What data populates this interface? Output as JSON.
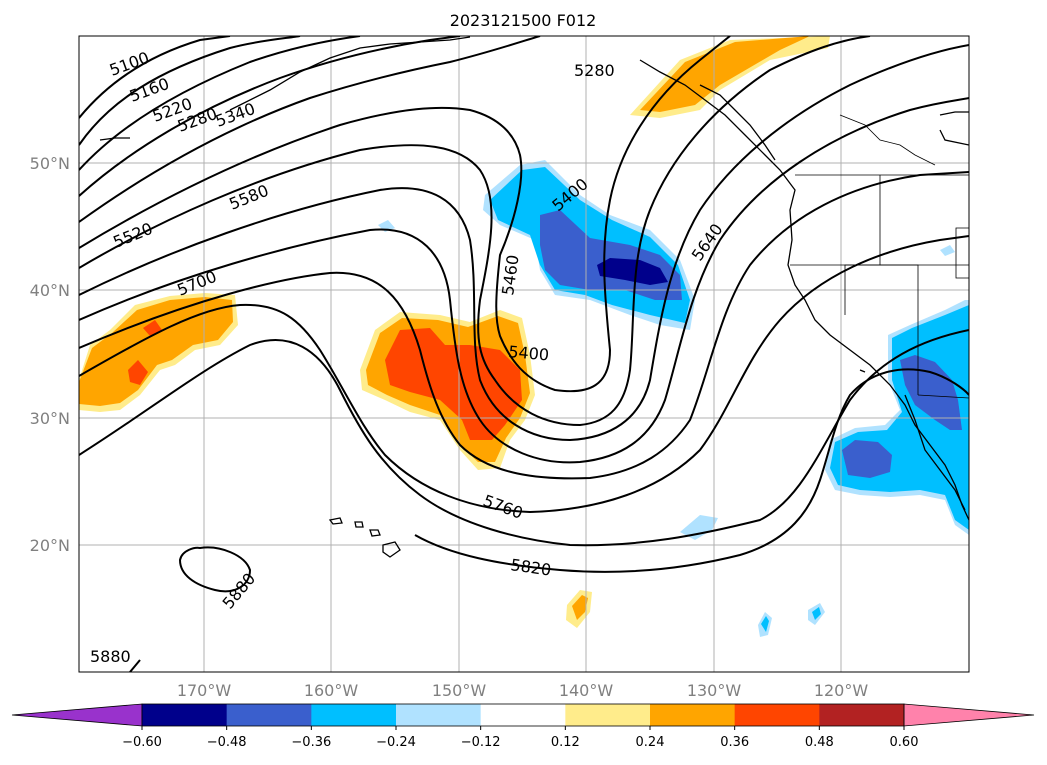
{
  "title": "2023121500 F012",
  "lat_labels": [
    "50°N",
    "40°N",
    "30°N",
    "20°N"
  ],
  "lon_labels": [
    "170°W",
    "160°W",
    "150°W",
    "140°W",
    "130°W",
    "120°W"
  ],
  "contour_labels": [
    "5100",
    "5160",
    "5220",
    "5280",
    "5340",
    "5580",
    "5520",
    "5700",
    "5400",
    "5460",
    "5400",
    "5640",
    "5280",
    "5760",
    "5820",
    "5880",
    "5880"
  ],
  "colorbar": {
    "ticks": [
      "−0.60",
      "−0.48",
      "−0.36",
      "−0.24",
      "−0.12",
      "0.12",
      "0.24",
      "0.36",
      "0.48",
      "0.60"
    ],
    "colors": [
      "#9932cc",
      "#00008b",
      "#3a5fcd",
      "#00bfff",
      "#b0e2ff",
      "#ffffff",
      "#ffec8b",
      "#ffa500",
      "#ff4500",
      "#b22222",
      "#ff82ab"
    ]
  },
  "colors": {
    "neg_light": "#b0e2ff",
    "neg_mid": "#00bfff",
    "neg_strong": "#3a5fcd",
    "neg_max": "#00008b",
    "pos_light": "#ffec8b",
    "pos_mid": "#ffa500",
    "pos_strong": "#ff4500",
    "pos_max": "#b22222"
  }
}
